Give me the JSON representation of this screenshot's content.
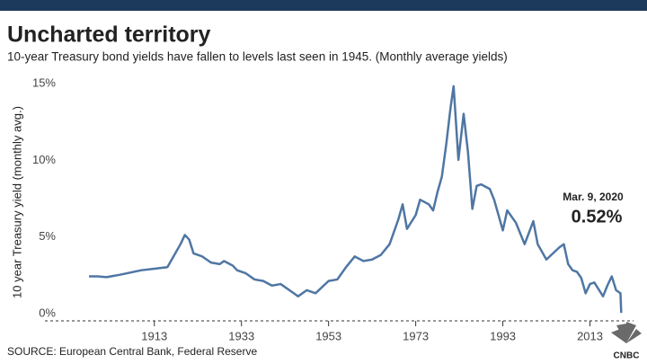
{
  "chart_data": {
    "type": "line",
    "title": "Uncharted territory",
    "subtitle": "10-year Treasury bond yields have fallen to levels last seen in 1945. (Monthly average yields)",
    "y_label": "10 year Treasury yield (monthly avg.)",
    "source": "SOURCE: European Central Bank, Federal Reserve",
    "logo_text": "CNBC",
    "annotation": {
      "date": "Mar. 9, 2020",
      "value_label": "0.52%"
    },
    "xlim": [
      1895,
      2023
    ],
    "xticks": [
      1913,
      1933,
      1953,
      1973,
      1993,
      2013
    ],
    "ylim": [
      0,
      16
    ],
    "yticks": [
      {
        "value": 0,
        "label": "0%"
      },
      {
        "value": 5,
        "label": "5%"
      },
      {
        "value": 10,
        "label": "10%"
      },
      {
        "value": 15,
        "label": "15%"
      }
    ],
    "x": [
      1898,
      1900,
      1902,
      1905,
      1910,
      1913,
      1916,
      1917,
      1919,
      1920,
      1921,
      1922,
      1924,
      1926,
      1928,
      1929,
      1931,
      1932,
      1934,
      1936,
      1938,
      1940,
      1942,
      1945,
      1946,
      1948,
      1950,
      1953,
      1955,
      1957,
      1959,
      1961,
      1963,
      1965,
      1967,
      1969,
      1970,
      1971,
      1973,
      1974,
      1976,
      1977,
      1978,
      1979,
      1980,
      1981,
      1981.7,
      1982,
      1982.8,
      1984,
      1985,
      1986,
      1987,
      1988,
      1990,
      1991,
      1993,
      1994,
      1996,
      1998,
      2000,
      2001,
      2003,
      2006,
      2007,
      2008,
      2009,
      2010,
      2011,
      2012,
      2013,
      2014,
      2016,
      2017,
      2018,
      2019,
      2020.0,
      2020.18
    ],
    "series": [
      {
        "name": "10-year Treasury yield",
        "color": "#4f76a3",
        "values": [
          2.9,
          2.9,
          2.85,
          3.0,
          3.3,
          3.4,
          3.5,
          4.0,
          5.0,
          5.6,
          5.3,
          4.4,
          4.2,
          3.8,
          3.7,
          3.9,
          3.6,
          3.3,
          3.1,
          2.7,
          2.6,
          2.3,
          2.4,
          1.8,
          1.6,
          2.0,
          1.8,
          2.6,
          2.7,
          3.5,
          4.2,
          3.9,
          4.0,
          4.3,
          5.0,
          6.6,
          7.6,
          6.0,
          6.9,
          7.9,
          7.6,
          7.2,
          8.4,
          9.4,
          11.5,
          13.9,
          15.3,
          14.0,
          10.5,
          13.5,
          11.0,
          7.3,
          8.8,
          8.9,
          8.6,
          7.9,
          5.9,
          7.2,
          6.4,
          5.0,
          6.5,
          5.0,
          4.0,
          4.8,
          5.0,
          3.7,
          3.3,
          3.2,
          2.8,
          1.8,
          2.4,
          2.5,
          1.6,
          2.3,
          2.9,
          2.0,
          1.8,
          0.52
        ]
      }
    ]
  }
}
